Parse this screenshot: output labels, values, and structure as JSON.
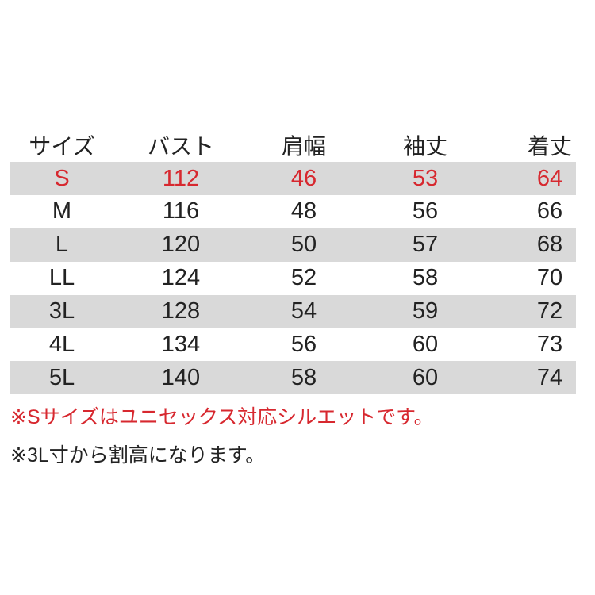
{
  "colors": {
    "accent_red": "#d7282f",
    "row_gray": "#d9d9d9"
  },
  "table": {
    "headers": [
      "サイズ",
      "バスト",
      "肩幅",
      "袖丈",
      "着丈"
    ],
    "rows": [
      [
        "S",
        "112",
        "46",
        "53",
        "64"
      ],
      [
        "M",
        "116",
        "48",
        "56",
        "66"
      ],
      [
        "L",
        "120",
        "50",
        "57",
        "68"
      ],
      [
        "LL",
        "124",
        "52",
        "58",
        "70"
      ],
      [
        "3L",
        "128",
        "54",
        "59",
        "72"
      ],
      [
        "4L",
        "134",
        "56",
        "60",
        "73"
      ],
      [
        "5L",
        "140",
        "58",
        "60",
        "74"
      ]
    ]
  },
  "notes": [
    "※Sサイズはユニセックス対応シルエットです。",
    "※3L寸から割高になります。"
  ]
}
